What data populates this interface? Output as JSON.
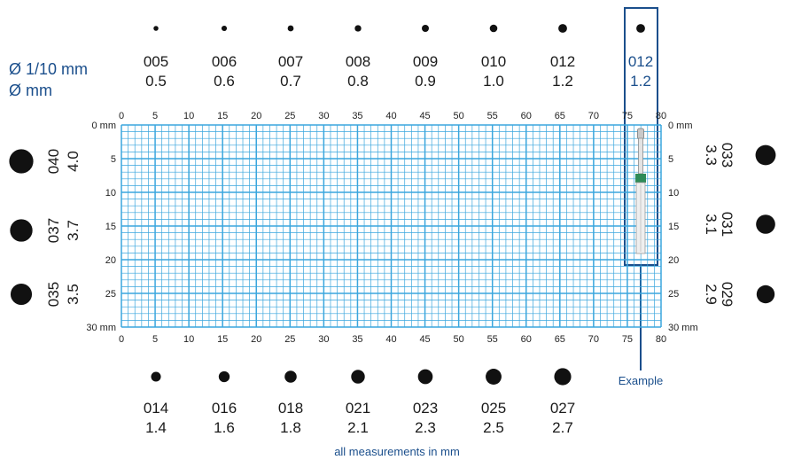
{
  "legend": {
    "label_code": "Ø 1/10 mm",
    "label_mm": "Ø mm"
  },
  "top_sizes": [
    {
      "code": "005",
      "mm": "0.5",
      "diameter_mm": 0.5
    },
    {
      "code": "006",
      "mm": "0.6",
      "diameter_mm": 0.6
    },
    {
      "code": "007",
      "mm": "0.7",
      "diameter_mm": 0.7
    },
    {
      "code": "008",
      "mm": "0.8",
      "diameter_mm": 0.8
    },
    {
      "code": "009",
      "mm": "0.9",
      "diameter_mm": 0.9
    },
    {
      "code": "010",
      "mm": "1.0",
      "diameter_mm": 1.0
    },
    {
      "code": "012",
      "mm": "1.2",
      "diameter_mm": 1.2
    }
  ],
  "example": {
    "code": "012",
    "mm": "1.2",
    "diameter_mm": 1.2,
    "caption": "Example"
  },
  "bottom_sizes": [
    {
      "code": "014",
      "mm": "1.4",
      "diameter_mm": 1.4
    },
    {
      "code": "016",
      "mm": "1.6",
      "diameter_mm": 1.6
    },
    {
      "code": "018",
      "mm": "1.8",
      "diameter_mm": 1.8
    },
    {
      "code": "021",
      "mm": "2.1",
      "diameter_mm": 2.1
    },
    {
      "code": "023",
      "mm": "2.3",
      "diameter_mm": 2.3
    },
    {
      "code": "025",
      "mm": "2.5",
      "diameter_mm": 2.5
    },
    {
      "code": "027",
      "mm": "2.7",
      "diameter_mm": 2.7
    }
  ],
  "left_sizes": [
    {
      "code": "040",
      "mm": "4.0",
      "diameter_mm": 4.0
    },
    {
      "code": "037",
      "mm": "3.7",
      "diameter_mm": 3.7
    },
    {
      "code": "035",
      "mm": "3.5",
      "diameter_mm": 3.5
    }
  ],
  "right_sizes": [
    {
      "code": "033",
      "mm": "3.3",
      "diameter_mm": 3.3
    },
    {
      "code": "031",
      "mm": "3.1",
      "diameter_mm": 3.1
    },
    {
      "code": "029",
      "mm": "2.9",
      "diameter_mm": 2.9
    }
  ],
  "grid": {
    "x_ticks": [
      "0",
      "5",
      "10",
      "15",
      "20",
      "25",
      "30",
      "35",
      "40",
      "45",
      "50",
      "55",
      "60",
      "65",
      "70",
      "75",
      "80"
    ],
    "y_ticks_left": [
      "0 mm",
      "5",
      "10",
      "15",
      "20",
      "25",
      "30 mm"
    ],
    "y_ticks_right": [
      "0 mm",
      "5",
      "10",
      "15",
      "20",
      "25",
      "30 mm"
    ],
    "x_max_mm": 80,
    "y_max_mm": 30
  },
  "footer": "all measurements in mm",
  "colors": {
    "grid": "#3aa6dd",
    "accent": "#1b4f8c",
    "dot": "#111111",
    "band": "#2e8b57"
  }
}
